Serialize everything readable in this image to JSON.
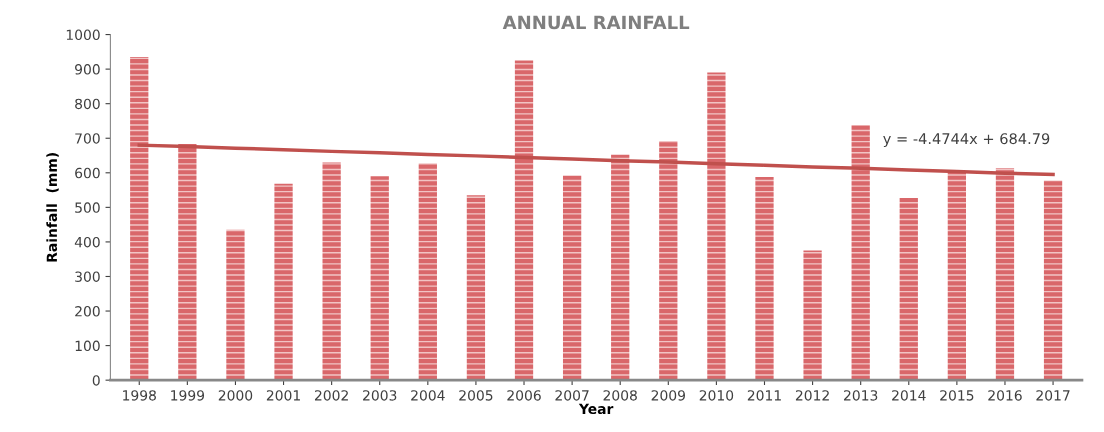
{
  "chart_data": {
    "type": "bar",
    "title": "ANNUAL RAINFALL",
    "xlabel": "Year",
    "ylabel": "Rainfall  (mm)",
    "categories": [
      "1998",
      "1999",
      "2000",
      "2001",
      "2002",
      "2003",
      "2004",
      "2005",
      "2006",
      "2007",
      "2008",
      "2009",
      "2010",
      "2011",
      "2012",
      "2013",
      "2014",
      "2015",
      "2016",
      "2017"
    ],
    "series": [
      {
        "color": "#d9676a",
        "values": [
          935,
          683,
          435,
          568,
          630,
          590,
          627,
          535,
          925,
          592,
          652,
          692,
          890,
          588,
          375,
          738,
          527,
          600,
          613,
          578
        ]
      },
      {
        "type": "line",
        "color": "#c0504d",
        "values": [
          680,
          676,
          671,
          667,
          662,
          658,
          653,
          649,
          644,
          640,
          635,
          631,
          626,
          622,
          617,
          613,
          608,
          604,
          599,
          595
        ]
      }
    ],
    "annotations": [
      "y = -4.4744x + 684.79"
    ],
    "ylim": [
      0,
      1000
    ],
    "yticks": [
      0,
      100,
      200,
      300,
      400,
      500,
      600,
      700,
      800,
      900,
      1000
    ],
    "grid": false,
    "legend": false
  }
}
